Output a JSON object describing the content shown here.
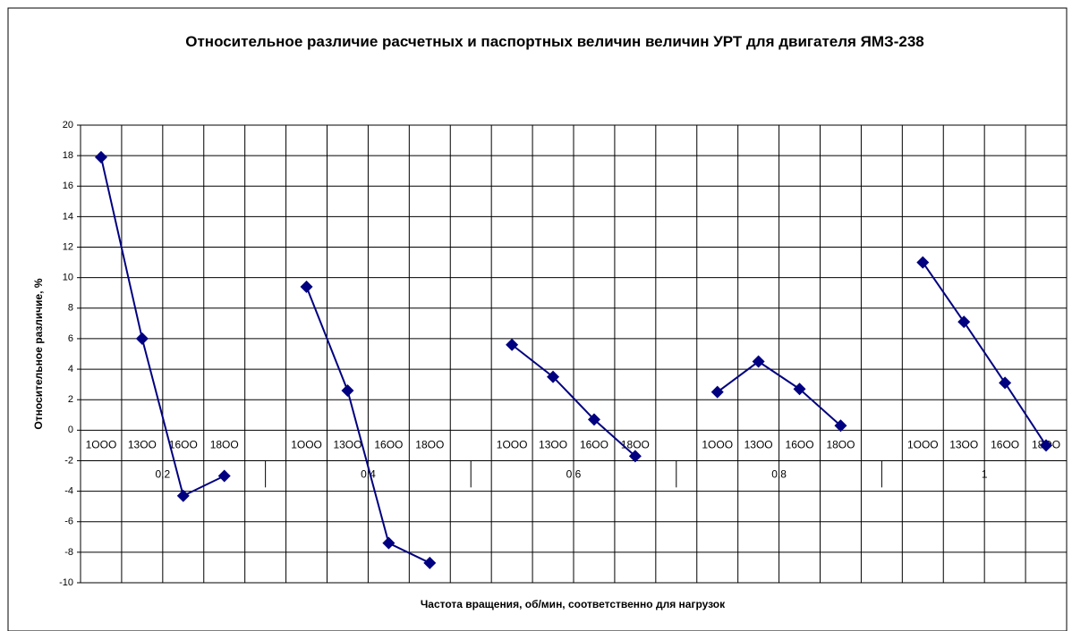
{
  "chart_data": {
    "type": "line",
    "title": "Относительное различие расчетных и паспортных величин величин УРТ для двигателя ЯМЗ-238",
    "x_label": "Частота вращения, об/мин, соответственно для нагрузок",
    "y_label": "Относительное различие, %",
    "categories": [
      "1OOO",
      "13OO",
      "16OO",
      "18OO",
      null,
      "1OOO",
      "13OO",
      "16OO",
      "18OO",
      null,
      "1OOO",
      "13OO",
      "16OO",
      "18OO",
      null,
      "1OOO",
      "13OO",
      "16OO",
      "18OO",
      null,
      "1OOO",
      "13OO",
      "16OO",
      "18OO"
    ],
    "groups": [
      "0,2",
      "0,4",
      "0,6",
      "0,8",
      "1"
    ],
    "values": [
      17.9,
      6.0,
      -4.3,
      -3.0,
      null,
      9.4,
      2.6,
      -7.4,
      -8.7,
      null,
      5.6,
      3.5,
      0.7,
      -1.7,
      null,
      2.5,
      4.5,
      2.7,
      0.3,
      null,
      11.0,
      7.1,
      3.1,
      -1.0
    ],
    "color": "#000080",
    "ylim": [
      -10,
      20
    ],
    "yticks": [
      -10,
      -8,
      -6,
      -4,
      -2,
      0,
      2,
      4,
      6,
      8,
      10,
      12,
      14,
      16,
      18,
      20
    ],
    "grid": true
  }
}
